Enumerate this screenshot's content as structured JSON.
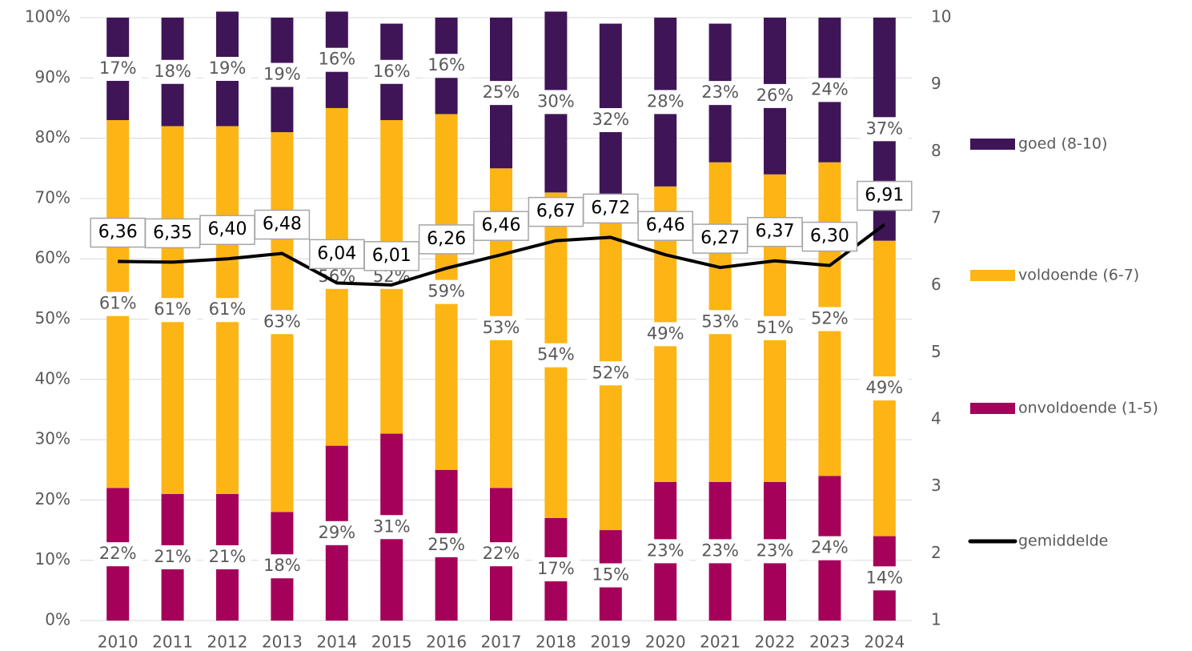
{
  "chart_data": {
    "type": "bar",
    "stacked": true,
    "categories": [
      "2010",
      "2011",
      "2012",
      "2013",
      "2014",
      "2015",
      "2016",
      "2017",
      "2018",
      "2019",
      "2020",
      "2021",
      "2022",
      "2023",
      "2024"
    ],
    "series": [
      {
        "name": "onvoldoende (1-5)",
        "color": "#a5005a",
        "values": [
          22,
          21,
          21,
          18,
          29,
          31,
          25,
          22,
          17,
          15,
          23,
          23,
          23,
          24,
          14
        ],
        "value_labels": [
          "22%",
          "21%",
          "21%",
          "18%",
          "29%",
          "31%",
          "25%",
          "22%",
          "17%",
          "15%",
          "23%",
          "23%",
          "23%",
          "24%",
          "14%"
        ]
      },
      {
        "name": "voldoende (6-7)",
        "color": "#fdb515",
        "values": [
          61,
          61,
          61,
          63,
          56,
          52,
          59,
          53,
          54,
          52,
          49,
          53,
          51,
          52,
          49
        ],
        "value_labels": [
          "61%",
          "61%",
          "61%",
          "63%",
          "56%",
          "52%",
          "59%",
          "53%",
          "54%",
          "52%",
          "49%",
          "53%",
          "51%",
          "52%",
          "49%"
        ]
      },
      {
        "name": "goed (8-10)",
        "color": "#3f1558",
        "values": [
          17,
          18,
          19,
          19,
          16,
          16,
          16,
          25,
          30,
          32,
          28,
          23,
          26,
          24,
          37
        ],
        "value_labels": [
          "17%",
          "18%",
          "19%",
          "19%",
          "16%",
          "16%",
          "16%",
          "25%",
          "30%",
          "32%",
          "28%",
          "23%",
          "26%",
          "24%",
          "37%"
        ]
      },
      {
        "name": "gemiddelde",
        "type": "line",
        "axis": "y2",
        "color": "#000000",
        "values": [
          6.36,
          6.35,
          6.4,
          6.48,
          6.04,
          6.01,
          6.26,
          6.46,
          6.67,
          6.72,
          6.46,
          6.27,
          6.37,
          6.3,
          6.91
        ],
        "value_labels": [
          "6,36",
          "6,35",
          "6,40",
          "6,48",
          "6,04",
          "6,01",
          "6,26",
          "6,46",
          "6,67",
          "6,72",
          "6,46",
          "6,27",
          "6,37",
          "6,30",
          "6,91"
        ]
      }
    ],
    "ylim": [
      0,
      100
    ],
    "yticks": [
      {
        "value": 0,
        "label": "0%"
      },
      {
        "value": 10,
        "label": "10%"
      },
      {
        "value": 20,
        "label": "20%"
      },
      {
        "value": 30,
        "label": "30%"
      },
      {
        "value": 40,
        "label": "40%"
      },
      {
        "value": 50,
        "label": "50%"
      },
      {
        "value": 60,
        "label": "60%"
      },
      {
        "value": 70,
        "label": "70%"
      },
      {
        "value": 80,
        "label": "80%"
      },
      {
        "value": 90,
        "label": "90%"
      },
      {
        "value": 100,
        "label": "100%"
      }
    ],
    "y2lim": [
      1,
      10
    ],
    "y2ticks": [
      1,
      2,
      3,
      4,
      5,
      6,
      7,
      8,
      9,
      10
    ],
    "grid": true,
    "legend": "right"
  }
}
